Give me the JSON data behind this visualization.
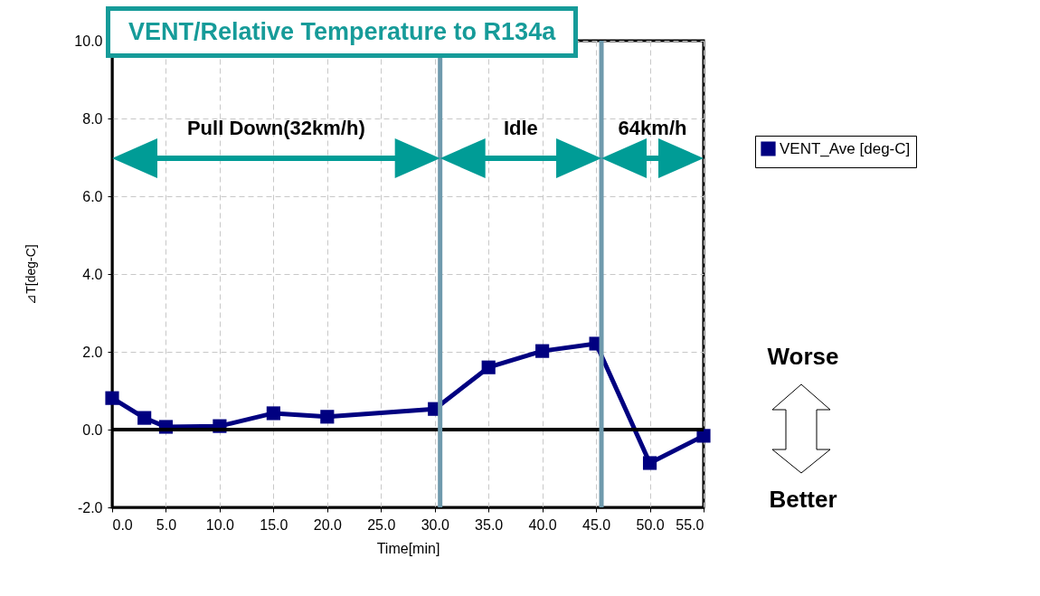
{
  "chart_data": {
    "type": "line",
    "title": "VENT/Relative Temperature to R134a",
    "xlabel": "Time[min]",
    "ylabel": "⊿T[deg-C]",
    "x": [
      0,
      3,
      5,
      10,
      15,
      20,
      30,
      35,
      40,
      45,
      50,
      55
    ],
    "series": [
      {
        "name": "VENT_Ave [deg-C]",
        "color": "#000080",
        "values": [
          0.81,
          0.3,
          0.07,
          0.09,
          0.42,
          0.33,
          0.53,
          1.6,
          2.02,
          2.21,
          -0.86,
          -0.16
        ]
      }
    ],
    "xlim": [
      0,
      55
    ],
    "xticks": [
      {
        "value": 0,
        "label": "0.0"
      },
      {
        "value": 5,
        "label": "5.0"
      },
      {
        "value": 10,
        "label": "10.0"
      },
      {
        "value": 15,
        "label": "15.0"
      },
      {
        "value": 20,
        "label": "20.0"
      },
      {
        "value": 25,
        "label": "25.0"
      },
      {
        "value": 30,
        "label": "30.0"
      },
      {
        "value": 35,
        "label": "35.0"
      },
      {
        "value": 40,
        "label": "40.0"
      },
      {
        "value": 45,
        "label": "45.0"
      },
      {
        "value": 50,
        "label": "50.0"
      },
      {
        "value": 55,
        "label": "55.0"
      }
    ],
    "ylim": [
      -2,
      10
    ],
    "yticks": [
      {
        "value": -2,
        "label": "-2.0"
      },
      {
        "value": 0,
        "label": "0.0"
      },
      {
        "value": 2,
        "label": "2.0"
      },
      {
        "value": 4,
        "label": "4.0"
      },
      {
        "value": 6,
        "label": "6.0"
      },
      {
        "value": 8,
        "label": "8.0"
      },
      {
        "value": 10,
        "label": "10.0"
      }
    ],
    "ref_lines": [
      {
        "axis": "y",
        "value": 0,
        "color": "#000000"
      },
      {
        "axis": "x",
        "value": 30.5,
        "color": "#6f9aad"
      },
      {
        "axis": "x",
        "value": 45.5,
        "color": "#6f9aad"
      }
    ],
    "annotations": [
      "Pull Down(32km/h)",
      "Idle",
      "64km/h",
      "Worse",
      "Better"
    ],
    "grid": true,
    "legend": "top right",
    "marker": "square",
    "line_style": "solid"
  }
}
